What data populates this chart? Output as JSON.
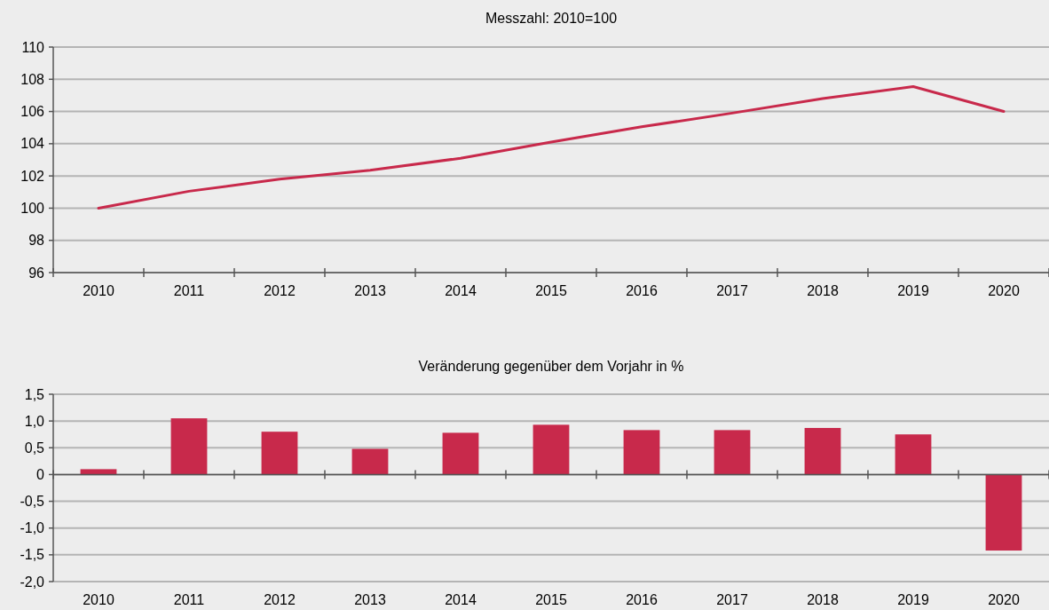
{
  "chart_data": [
    {
      "type": "line",
      "title": "Messzahl: 2010=100",
      "categories": [
        "2010",
        "2011",
        "2012",
        "2013",
        "2014",
        "2015",
        "2016",
        "2017",
        "2018",
        "2019",
        "2020"
      ],
      "series": [
        {
          "color": "#c8294b",
          "values": [
            100,
            101.05,
            101.8,
            102.35,
            103.1,
            104.1,
            105.05,
            105.9,
            106.8,
            107.55,
            106.0
          ]
        }
      ],
      "ylim": [
        96,
        110
      ],
      "yticks": [
        96,
        98,
        100,
        102,
        104,
        106,
        108,
        110
      ],
      "grid": "y"
    },
    {
      "type": "bar",
      "title": "Veränderung gegenüber dem Vorjahr in %",
      "categories": [
        "2010",
        "2011",
        "2012",
        "2013",
        "2014",
        "2015",
        "2016",
        "2017",
        "2018",
        "2019",
        "2020"
      ],
      "series": [
        {
          "color": "#c8294b",
          "values": [
            0.1,
            1.05,
            0.8,
            0.48,
            0.78,
            0.93,
            0.83,
            0.83,
            0.87,
            0.75,
            -1.42
          ]
        }
      ],
      "ylim": [
        -2,
        1.5
      ],
      "yticks": [
        {
          "value": -2,
          "label": "-2,0"
        },
        {
          "value": -1.5,
          "label": "-1,5"
        },
        {
          "value": -1,
          "label": "-1,0"
        },
        {
          "value": -0.5,
          "label": "-0,5"
        },
        {
          "value": 0,
          "label": "0"
        },
        {
          "value": 0.5,
          "label": "0,5"
        },
        {
          "value": 1,
          "label": "1,0"
        },
        {
          "value": 1.5,
          "label": "1,5"
        }
      ],
      "grid": "y"
    }
  ]
}
